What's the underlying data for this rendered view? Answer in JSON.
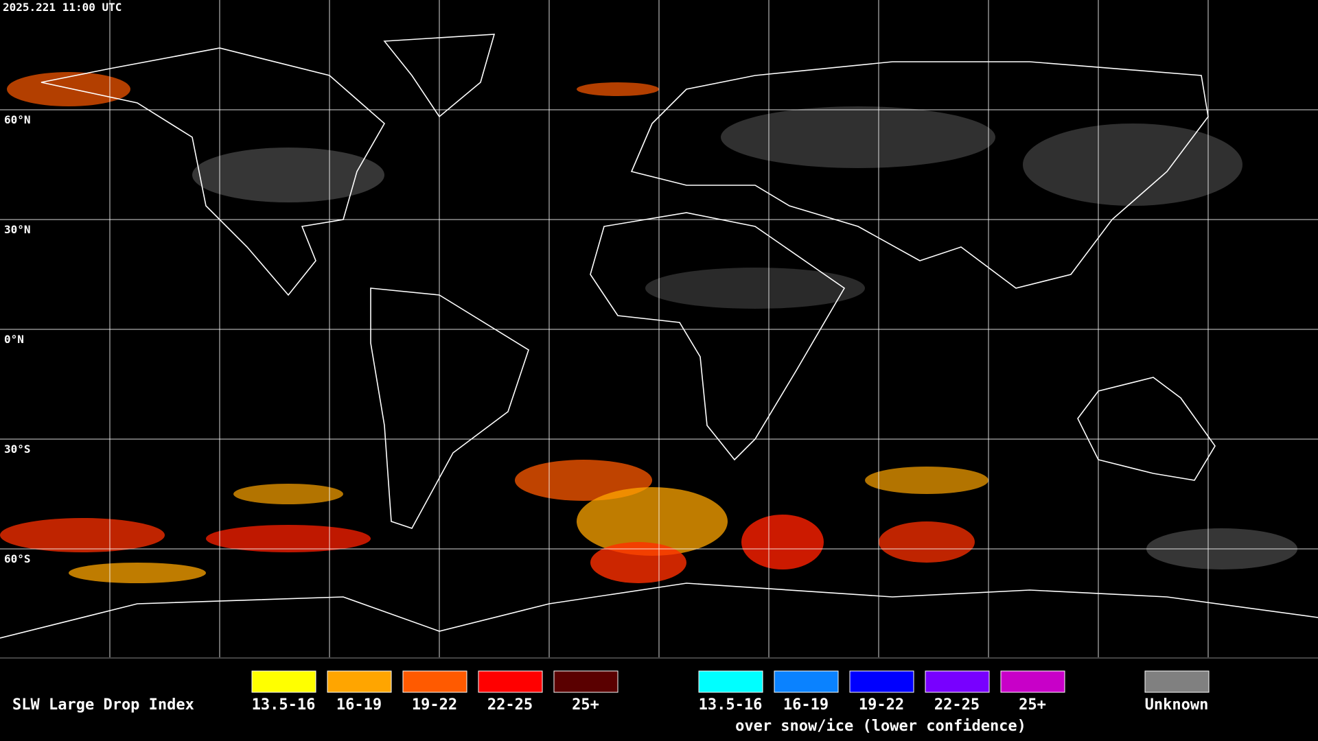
{
  "header": {
    "timestamp": "2025.221 11:00 UTC"
  },
  "map": {
    "latitude_labels": [
      "60°N",
      "30°N",
      "0°N",
      "30°S",
      "60°S"
    ]
  },
  "legend": {
    "title": "SLW Large Drop Index",
    "groups": [
      {
        "items": [
          {
            "label": "13.5-16",
            "color": "#ffff00"
          },
          {
            "label": "16-19",
            "color": "#ffa500"
          },
          {
            "label": "19-22",
            "color": "#ff5a00"
          },
          {
            "label": "22-25",
            "color": "#ff0000"
          },
          {
            "label": "25+",
            "color": "#5a0000"
          }
        ]
      },
      {
        "items": [
          {
            "label": "13.5-16",
            "color": "#00ffff"
          },
          {
            "label": "16-19",
            "color": "#0a82ff"
          },
          {
            "label": "19-22",
            "color": "#0000ff"
          },
          {
            "label": "22-25",
            "color": "#7800ff"
          },
          {
            "label": "25+",
            "color": "#c800c8"
          }
        ],
        "note": "over snow/ice (lower confidence)"
      }
    ],
    "unknown": {
      "label": "Unknown",
      "color": "#808080"
    }
  }
}
